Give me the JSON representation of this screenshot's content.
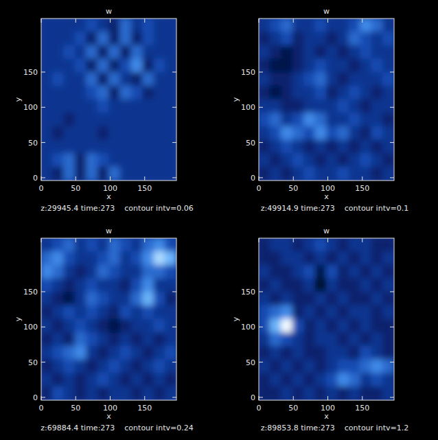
{
  "chart_data": [
    {
      "type": "heatmap",
      "title": "w",
      "x_label": "x",
      "y_label": "y",
      "caption": "z:29945.4 time:273    contour intv=0.06",
      "xlim": [
        0,
        196
      ],
      "ylim": [
        -4,
        226
      ],
      "xticks": [
        0,
        50,
        100,
        150
      ],
      "yticks": [
        0,
        50,
        100,
        150
      ],
      "zlim": [
        0,
        9
      ],
      "cells": [
        [
          3,
          3,
          3,
          3,
          4,
          3,
          2,
          5,
          3,
          4,
          3,
          3
        ],
        [
          3,
          3,
          3,
          4,
          2,
          5,
          2,
          5,
          2,
          4,
          3,
          3
        ],
        [
          3,
          3,
          4,
          3,
          5,
          2,
          5,
          2,
          5,
          3,
          3,
          3
        ],
        [
          3,
          3,
          3,
          4,
          2,
          5,
          2,
          4,
          6,
          2,
          4,
          3
        ],
        [
          3,
          4,
          3,
          3,
          5,
          2,
          5,
          3,
          2,
          5,
          3,
          3
        ],
        [
          3,
          3,
          3,
          3,
          4,
          5,
          2,
          5,
          4,
          2,
          3,
          3
        ],
        [
          3,
          3,
          3,
          3,
          3,
          4,
          3,
          3,
          3,
          3,
          3,
          3
        ],
        [
          3,
          3,
          2,
          3,
          3,
          3,
          3,
          3,
          3,
          3,
          3,
          3
        ],
        [
          3,
          2,
          3,
          3,
          3,
          2,
          3,
          3,
          3,
          3,
          3,
          3
        ],
        [
          3,
          3,
          3,
          3,
          3,
          3,
          3,
          3,
          3,
          3,
          3,
          3
        ],
        [
          3,
          4,
          5,
          2,
          5,
          4,
          3,
          3,
          3,
          3,
          3,
          3
        ],
        [
          3,
          2,
          5,
          2,
          5,
          2,
          5,
          3,
          3,
          3,
          3,
          3
        ]
      ]
    },
    {
      "type": "heatmap",
      "title": "w",
      "x_label": "x",
      "y_label": "y",
      "caption": "z:49914.9 time:273    contour intv=0.1",
      "xlim": [
        0,
        196
      ],
      "ylim": [
        -4,
        226
      ],
      "xticks": [
        0,
        50,
        100,
        150
      ],
      "yticks": [
        0,
        50,
        100,
        150
      ],
      "zlim": [
        0,
        9
      ],
      "cells": [
        [
          3,
          4,
          5,
          3,
          3,
          4,
          3,
          3,
          4,
          6,
          5,
          3
        ],
        [
          2,
          3,
          4,
          2,
          3,
          3,
          2,
          3,
          5,
          4,
          3,
          4
        ],
        [
          3,
          2,
          1,
          2,
          3,
          2,
          3,
          2,
          3,
          4,
          3,
          3
        ],
        [
          2,
          1,
          1,
          2,
          3,
          4,
          3,
          3,
          2,
          3,
          4,
          3
        ],
        [
          3,
          2,
          2,
          3,
          4,
          5,
          3,
          2,
          3,
          3,
          3,
          4
        ],
        [
          2,
          1,
          2,
          3,
          3,
          4,
          2,
          3,
          4,
          3,
          2,
          3
        ],
        [
          3,
          3,
          2,
          2,
          3,
          3,
          3,
          4,
          3,
          2,
          3,
          3
        ],
        [
          4,
          5,
          3,
          4,
          6,
          5,
          3,
          3,
          4,
          3,
          3,
          2
        ],
        [
          3,
          4,
          6,
          5,
          4,
          6,
          4,
          5,
          3,
          2,
          4,
          3
        ],
        [
          2,
          3,
          4,
          3,
          2,
          3,
          2,
          3,
          2,
          3,
          2,
          3
        ],
        [
          3,
          2,
          3,
          4,
          3,
          2,
          3,
          2,
          3,
          4,
          3,
          2
        ],
        [
          2,
          3,
          2,
          3,
          4,
          3,
          3,
          4,
          3,
          3,
          2,
          3
        ]
      ]
    },
    {
      "type": "heatmap",
      "title": "w",
      "x_label": "x",
      "y_label": "y",
      "caption": "z:69884.4 time:273    contour intv=0.24",
      "xlim": [
        0,
        196
      ],
      "ylim": [
        -4,
        226
      ],
      "xticks": [
        0,
        50,
        100,
        150
      ],
      "yticks": [
        0,
        50,
        100,
        150
      ],
      "zlim": [
        0,
        9
      ],
      "cells": [
        [
          3,
          4,
          5,
          3,
          4,
          3,
          5,
          4,
          3,
          5,
          6,
          4
        ],
        [
          5,
          6,
          4,
          3,
          3,
          4,
          5,
          3,
          4,
          6,
          8,
          7
        ],
        [
          6,
          5,
          3,
          2,
          3,
          5,
          4,
          3,
          3,
          5,
          5,
          4
        ],
        [
          4,
          3,
          2,
          3,
          4,
          3,
          3,
          2,
          4,
          6,
          3,
          3
        ],
        [
          3,
          2,
          1,
          3,
          5,
          4,
          3,
          3,
          5,
          7,
          4,
          2
        ],
        [
          2,
          3,
          4,
          3,
          4,
          3,
          2,
          4,
          3,
          4,
          3,
          3
        ],
        [
          3,
          2,
          3,
          4,
          3,
          2,
          1,
          2,
          3,
          3,
          4,
          3
        ],
        [
          2,
          3,
          2,
          5,
          4,
          3,
          2,
          3,
          2,
          3,
          2,
          3
        ],
        [
          3,
          4,
          5,
          6,
          3,
          2,
          3,
          4,
          3,
          2,
          3,
          4
        ],
        [
          2,
          3,
          4,
          3,
          2,
          3,
          4,
          3,
          2,
          3,
          4,
          3
        ],
        [
          3,
          2,
          3,
          2,
          3,
          4,
          3,
          2,
          3,
          2,
          3,
          2
        ],
        [
          2,
          4,
          3,
          2,
          3,
          2,
          3,
          3,
          2,
          3,
          2,
          3
        ]
      ]
    },
    {
      "type": "heatmap",
      "title": "w",
      "x_label": "x",
      "y_label": "y",
      "caption": "z:89853.8 time:273    contour intv=1.2",
      "xlim": [
        0,
        196
      ],
      "ylim": [
        -4,
        226
      ],
      "xticks": [
        0,
        50,
        100,
        150
      ],
      "yticks": [
        0,
        50,
        100,
        150
      ],
      "zlim": [
        0,
        9
      ],
      "cells": [
        [
          2,
          3,
          3,
          2,
          3,
          4,
          3,
          2,
          3,
          3,
          2,
          2
        ],
        [
          2,
          2,
          3,
          3,
          2,
          3,
          2,
          3,
          2,
          3,
          2,
          3
        ],
        [
          3,
          2,
          2,
          3,
          4,
          1,
          4,
          2,
          3,
          2,
          3,
          2
        ],
        [
          2,
          3,
          2,
          2,
          3,
          0,
          3,
          2,
          2,
          3,
          2,
          3
        ],
        [
          3,
          2,
          3,
          2,
          2,
          3,
          2,
          3,
          2,
          2,
          3,
          2
        ],
        [
          4,
          5,
          6,
          2,
          3,
          2,
          3,
          2,
          3,
          3,
          2,
          3
        ],
        [
          4,
          7,
          9,
          4,
          2,
          3,
          2,
          3,
          2,
          3,
          2,
          2
        ],
        [
          3,
          5,
          4,
          3,
          2,
          3,
          3,
          2,
          3,
          2,
          3,
          2
        ],
        [
          2,
          3,
          2,
          3,
          2,
          2,
          3,
          3,
          2,
          4,
          3,
          2
        ],
        [
          3,
          2,
          3,
          2,
          3,
          2,
          3,
          4,
          4,
          5,
          6,
          5
        ],
        [
          2,
          3,
          2,
          3,
          2,
          3,
          4,
          6,
          5,
          3,
          4,
          3
        ],
        [
          2,
          2,
          3,
          2,
          3,
          2,
          3,
          2,
          3,
          2,
          2,
          3
        ]
      ]
    }
  ]
}
